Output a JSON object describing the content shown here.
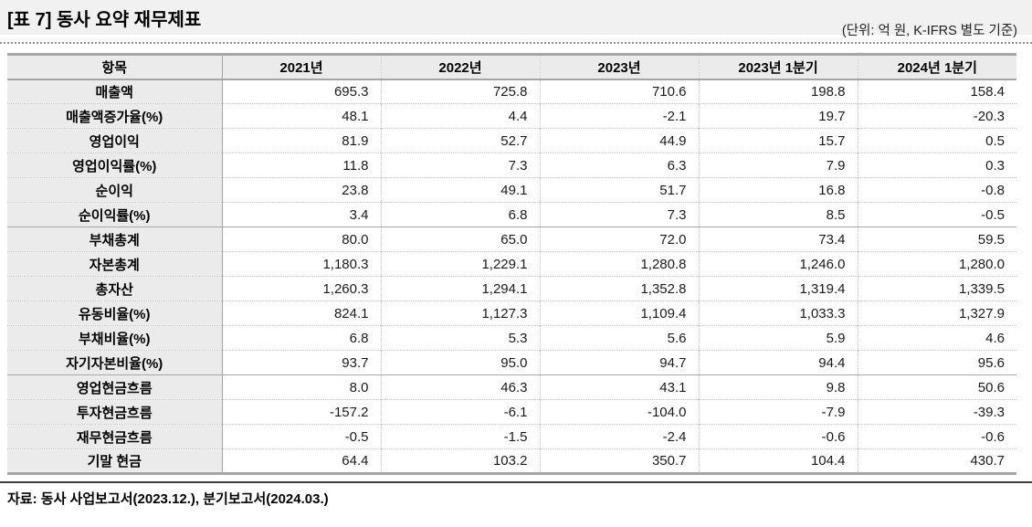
{
  "page": {
    "title": "[표 7] 동사 요약 재무제표",
    "unit_note": "(단위: 억 원, K-IFRS 별도 기준)",
    "source_note": "자료: 동사 사업보고서(2023.12.), 분기보고서(2024.03.)"
  },
  "colors": {
    "caption_band_bg": "#f1f1f1",
    "header_row_bg": "#ebebeb",
    "label_column_bg": "#ebebeb",
    "solid_border": "#a6a6a6",
    "dotted_border": "#c6c6c6",
    "footer_rule": "#3c3c3c"
  },
  "table": {
    "columns": [
      "항목",
      "2021년",
      "2022년",
      "2023년",
      "2023년 1분기",
      "2024년 1분기"
    ],
    "rows": [
      {
        "label": "매출액",
        "values": [
          "695.3",
          "725.8",
          "710.6",
          "198.8",
          "158.4"
        ]
      },
      {
        "label": "매출액증가율(%)",
        "values": [
          "48.1",
          "4.4",
          "-2.1",
          "19.7",
          "-20.3"
        ]
      },
      {
        "label": "영업이익",
        "values": [
          "81.9",
          "52.7",
          "44.9",
          "15.7",
          "0.5"
        ]
      },
      {
        "label": "영업이익률(%)",
        "values": [
          "11.8",
          "7.3",
          "6.3",
          "7.9",
          "0.3"
        ]
      },
      {
        "label": "순이익",
        "values": [
          "23.8",
          "49.1",
          "51.7",
          "16.8",
          "-0.8"
        ]
      },
      {
        "label": "순이익률(%)",
        "values": [
          "3.4",
          "6.8",
          "7.3",
          "8.5",
          "-0.5"
        ]
      },
      {
        "label": "부채총계",
        "values": [
          "80.0",
          "65.0",
          "72.0",
          "73.4",
          "59.5"
        ]
      },
      {
        "label": "자본총계",
        "values": [
          "1,180.3",
          "1,229.1",
          "1,280.8",
          "1,246.0",
          "1,280.0"
        ]
      },
      {
        "label": "총자산",
        "values": [
          "1,260.3",
          "1,294.1",
          "1,352.8",
          "1,319.4",
          "1,339.5"
        ]
      },
      {
        "label": "유동비율(%)",
        "values": [
          "824.1",
          "1,127.3",
          "1,109.4",
          "1,033.3",
          "1,327.9"
        ]
      },
      {
        "label": "부채비율(%)",
        "values": [
          "6.8",
          "5.3",
          "5.6",
          "5.9",
          "4.6"
        ]
      },
      {
        "label": "자기자본비율(%)",
        "values": [
          "93.7",
          "95.0",
          "94.7",
          "94.4",
          "95.6"
        ]
      },
      {
        "label": "영업현금흐름",
        "values": [
          "8.0",
          "46.3",
          "43.1",
          "9.8",
          "50.6"
        ]
      },
      {
        "label": "투자현금흐름",
        "values": [
          "-157.2",
          "-6.1",
          "-104.0",
          "-7.9",
          "-39.3"
        ]
      },
      {
        "label": "재무현금흐름",
        "values": [
          "-0.5",
          "-1.5",
          "-2.4",
          "-0.6",
          "-0.6"
        ]
      },
      {
        "label": "기말 현금",
        "values": [
          "64.4",
          "103.2",
          "350.7",
          "104.4",
          "430.7"
        ]
      }
    ]
  }
}
